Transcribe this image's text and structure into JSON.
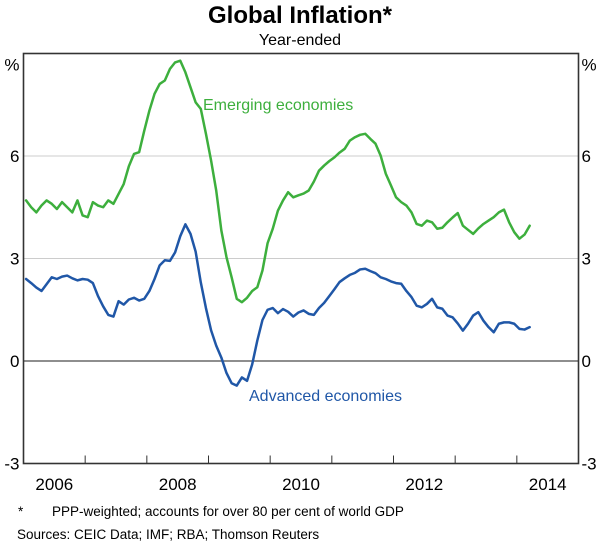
{
  "title": "Global Inflation*",
  "subtitle": "Year-ended",
  "footnote": {
    "marker": "*",
    "text": "PPP-weighted; accounts for over 80 per cent of world GDP"
  },
  "sources": "Sources:  CEIC Data; IMF; RBA; Thomson Reuters",
  "chart_data": {
    "type": "line",
    "title": "Global Inflation*",
    "subtitle": "Year-ended",
    "unit": "%",
    "ylim": [
      -3,
      9
    ],
    "y_labeled_ticks": [
      6,
      3,
      0,
      -3
    ],
    "gridlines": [
      6,
      3
    ],
    "zero_line": 0,
    "xlim": [
      2006.0,
      2015.0
    ],
    "x_year_labels": [
      2006,
      2008,
      2010,
      2012,
      2014
    ],
    "x_boundary_ticks": [
      2007,
      2008,
      2009,
      2010,
      2011,
      2012,
      2013,
      2014
    ],
    "frequency": "monthly",
    "start": {
      "year": 2006,
      "month": 1
    },
    "grid_color": "#cccccc",
    "zero_line_color": "#4a4a4a",
    "frame_color": "#333333",
    "series": [
      {
        "name": "Emerging economies",
        "color": "#3DAF3D",
        "values": [
          4.7,
          4.5,
          4.35,
          4.55,
          4.7,
          4.6,
          4.45,
          4.65,
          4.5,
          4.35,
          4.7,
          4.26,
          4.21,
          4.65,
          4.55,
          4.5,
          4.7,
          4.6,
          4.89,
          5.18,
          5.7,
          6.06,
          6.11,
          6.74,
          7.33,
          7.82,
          8.11,
          8.21,
          8.55,
          8.74,
          8.79,
          8.45,
          8.01,
          7.57,
          7.38,
          6.65,
          5.87,
          4.99,
          3.82,
          3.04,
          2.45,
          1.82,
          1.72,
          1.85,
          2.05,
          2.16,
          2.65,
          3.45,
          3.87,
          4.4,
          4.7,
          4.94,
          4.79,
          4.85,
          4.9,
          4.99,
          5.25,
          5.57,
          5.72,
          5.85,
          5.96,
          6.1,
          6.21,
          6.45,
          6.55,
          6.62,
          6.65,
          6.5,
          6.36,
          6.01,
          5.48,
          5.14,
          4.79,
          4.65,
          4.55,
          4.35,
          4.01,
          3.96,
          4.11,
          4.06,
          3.87,
          3.9,
          4.06,
          4.2,
          4.33,
          3.96,
          3.84,
          3.72,
          3.88,
          4.01,
          4.11,
          4.21,
          4.35,
          4.43,
          4.06,
          3.77,
          3.58,
          3.7,
          3.96
        ]
      },
      {
        "name": "Advanced economies",
        "color": "#2057A7",
        "values": [
          2.4,
          2.28,
          2.15,
          2.05,
          2.25,
          2.45,
          2.4,
          2.47,
          2.5,
          2.42,
          2.36,
          2.4,
          2.38,
          2.28,
          1.9,
          1.6,
          1.35,
          1.3,
          1.75,
          1.65,
          1.8,
          1.85,
          1.77,
          1.82,
          2.05,
          2.4,
          2.8,
          2.95,
          2.93,
          3.18,
          3.65,
          4.0,
          3.72,
          3.2,
          2.3,
          1.55,
          0.9,
          0.45,
          0.1,
          -0.35,
          -0.65,
          -0.72,
          -0.48,
          -0.58,
          -0.1,
          0.6,
          1.2,
          1.5,
          1.55,
          1.4,
          1.52,
          1.44,
          1.3,
          1.42,
          1.48,
          1.38,
          1.35,
          1.55,
          1.7,
          1.9,
          2.1,
          2.31,
          2.42,
          2.52,
          2.58,
          2.68,
          2.7,
          2.63,
          2.57,
          2.45,
          2.4,
          2.33,
          2.28,
          2.26,
          2.05,
          1.87,
          1.62,
          1.57,
          1.67,
          1.82,
          1.57,
          1.53,
          1.33,
          1.28,
          1.1,
          0.89,
          1.09,
          1.33,
          1.43,
          1.18,
          0.99,
          0.84,
          1.09,
          1.13,
          1.13,
          1.09,
          0.94,
          0.92,
          0.99
        ]
      }
    ],
    "legend_position": "inline-annotations"
  }
}
